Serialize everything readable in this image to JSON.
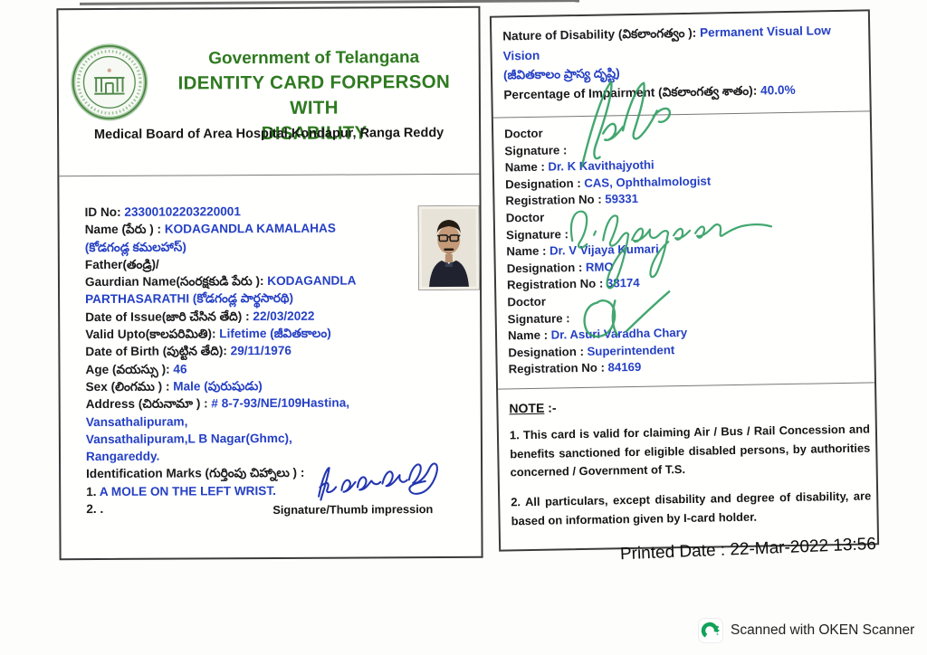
{
  "colors": {
    "title_green": "#2f7a20",
    "value_blue": "#2540c4",
    "label_black": "#1b1b1d",
    "signature_green": "#2f9e60",
    "signature_blue": "#2437b0",
    "oken_green": "#12a25a"
  },
  "left_card": {
    "header": {
      "government": "Government of Telangana",
      "title_line1": "IDENTITY CARD FORPERSON WITH",
      "title_line2": "DISABILITY",
      "board": "Medical Board of Area Hospital,Kondapur, Ranga Reddy",
      "seal_icon": "telangana-government-seal"
    },
    "detail_rows": [
      {
        "name": "id-no-row",
        "parts": [
          [
            "ID No: ",
            "k"
          ],
          [
            "23300102203220001",
            "b"
          ]
        ]
      },
      {
        "name": "name-row",
        "parts": [
          [
            "Name (పేరు ) : ",
            "k"
          ],
          [
            "KODAGANDLA KAMALAHAS",
            "b"
          ]
        ]
      },
      {
        "name": "name-telugu-row",
        "parts": [
          [
            "(కోడగండ్ల కమలహాస్)",
            "b"
          ]
        ]
      },
      {
        "name": "father-row",
        "parts": [
          [
            "Father(తండ్రి)/",
            "k"
          ]
        ]
      },
      {
        "name": "guardian-row",
        "parts": [
          [
            "Gaurdian Name(సంరక్షకుడి పేరు ): ",
            "k"
          ],
          [
            "KODAGANDLA",
            "b"
          ]
        ]
      },
      {
        "name": "guardian-value-row",
        "parts": [
          [
            "PARTHASARATHI   (కోడగండ్ల పార్థసారథి)",
            "b"
          ]
        ]
      },
      {
        "name": "date-of-issue-row",
        "parts": [
          [
            "Date of Issue(జారి చేసిన తేది) : ",
            "k"
          ],
          [
            "22/03/2022",
            "b"
          ]
        ]
      },
      {
        "name": "valid-upto-row",
        "parts": [
          [
            "Valid Upto(కాలపరిమితి): ",
            "k"
          ],
          [
            "Lifetime (జీవితకాలం)",
            "b"
          ]
        ]
      },
      {
        "name": "date-of-birth-row",
        "parts": [
          [
            "Date of Birth (పుట్టిన తేది): ",
            "k"
          ],
          [
            "29/11/1976",
            "b"
          ]
        ]
      },
      {
        "name": "age-row",
        "parts": [
          [
            "Age (వయస్సు ): ",
            "k"
          ],
          [
            "46",
            "b"
          ]
        ]
      },
      {
        "name": "sex-row",
        "parts": [
          [
            "Sex  (లింగము ) : ",
            "k"
          ],
          [
            "Male  (పురుషుడు)",
            "b"
          ]
        ]
      },
      {
        "name": "address-row",
        "parts": [
          [
            "Address (చిరునామా ) : ",
            "k"
          ],
          [
            "# 8-7-93/NE/109Hastina,",
            "b"
          ]
        ]
      },
      {
        "name": "address-line-2",
        "parts": [
          [
            "Vansathalipuram,",
            "b"
          ]
        ]
      },
      {
        "name": "address-line-3",
        "parts": [
          [
            "Vansathalipuram,L B Nagar(Ghmc),",
            "b"
          ]
        ]
      },
      {
        "name": "address-line-4",
        "parts": [
          [
            "Rangareddy.",
            "b"
          ]
        ]
      },
      {
        "name": "identification-marks-row",
        "parts": [
          [
            "Identification Marks (గుర్తింపు చిహ్నాలు ) : ",
            "k"
          ]
        ]
      },
      {
        "name": "identification-mark-1",
        "parts": [
          [
            "1. ",
            "k"
          ],
          [
            "A MOLE ON THE LEFT WRIST.",
            "b"
          ]
        ]
      },
      {
        "name": "identification-mark-2",
        "parts": [
          [
            "2. .",
            "k"
          ]
        ]
      }
    ],
    "holder_signature_handwritten_text": "K kamalahas",
    "signature_caption": "Signature/Thumb impression"
  },
  "right_card": {
    "disability_rows": [
      {
        "name": "nature-of-disability-row",
        "parts": [
          [
            "Nature of Disability (వికలాంగత్వం ): ",
            "k"
          ],
          [
            "Permanent  Visual Low",
            "b"
          ]
        ]
      },
      {
        "name": "nature-value-wrap-row",
        "parts": [
          [
            "Vision",
            "b"
          ]
        ]
      },
      {
        "name": "nature-telugu-row",
        "parts": [
          [
            "(జీవితకాలం   ప్రాస్య దృష్టి)",
            "b"
          ]
        ]
      },
      {
        "name": "impairment-percentage-row",
        "parts": [
          [
            "Percentage of Impairment (వికలాంగత్వ శాతం): ",
            "k"
          ],
          [
            "40.0%",
            "b"
          ]
        ]
      }
    ],
    "labels": {
      "doctor": "Doctor",
      "signature": "Signature : ",
      "name": "Name : ",
      "designation": "Designation : ",
      "registration": "Registration No : "
    },
    "doctors": [
      {
        "name": "Dr. K Kavithajyothi",
        "designation": "CAS, Ophthalmologist",
        "registration_no": "59331"
      },
      {
        "name": "Dr. V Vijaya Kumari",
        "designation": "RMO",
        "registration_no": "38174"
      },
      {
        "name": "Dr. Asuri Varadha Chary",
        "designation": "Superintendent",
        "registration_no": "84169"
      }
    ],
    "note": {
      "heading": "NOTE",
      "heading_suffix": " :-",
      "items": [
        "1. This card is valid for claiming Air / Bus / Rail Concession and benefits sanctioned for eligible disabled persons, by authorities concerned / Government of T.S.",
        "2. All particulars, except disability and degree of disability, are based on information given by I-card holder."
      ]
    }
  },
  "printed_date": "Printed Date : 22-Mar-2022 13:56",
  "scanner": {
    "watermark": "Scanned with OKEN Scanner",
    "icon": "oken-scanner-logo"
  }
}
